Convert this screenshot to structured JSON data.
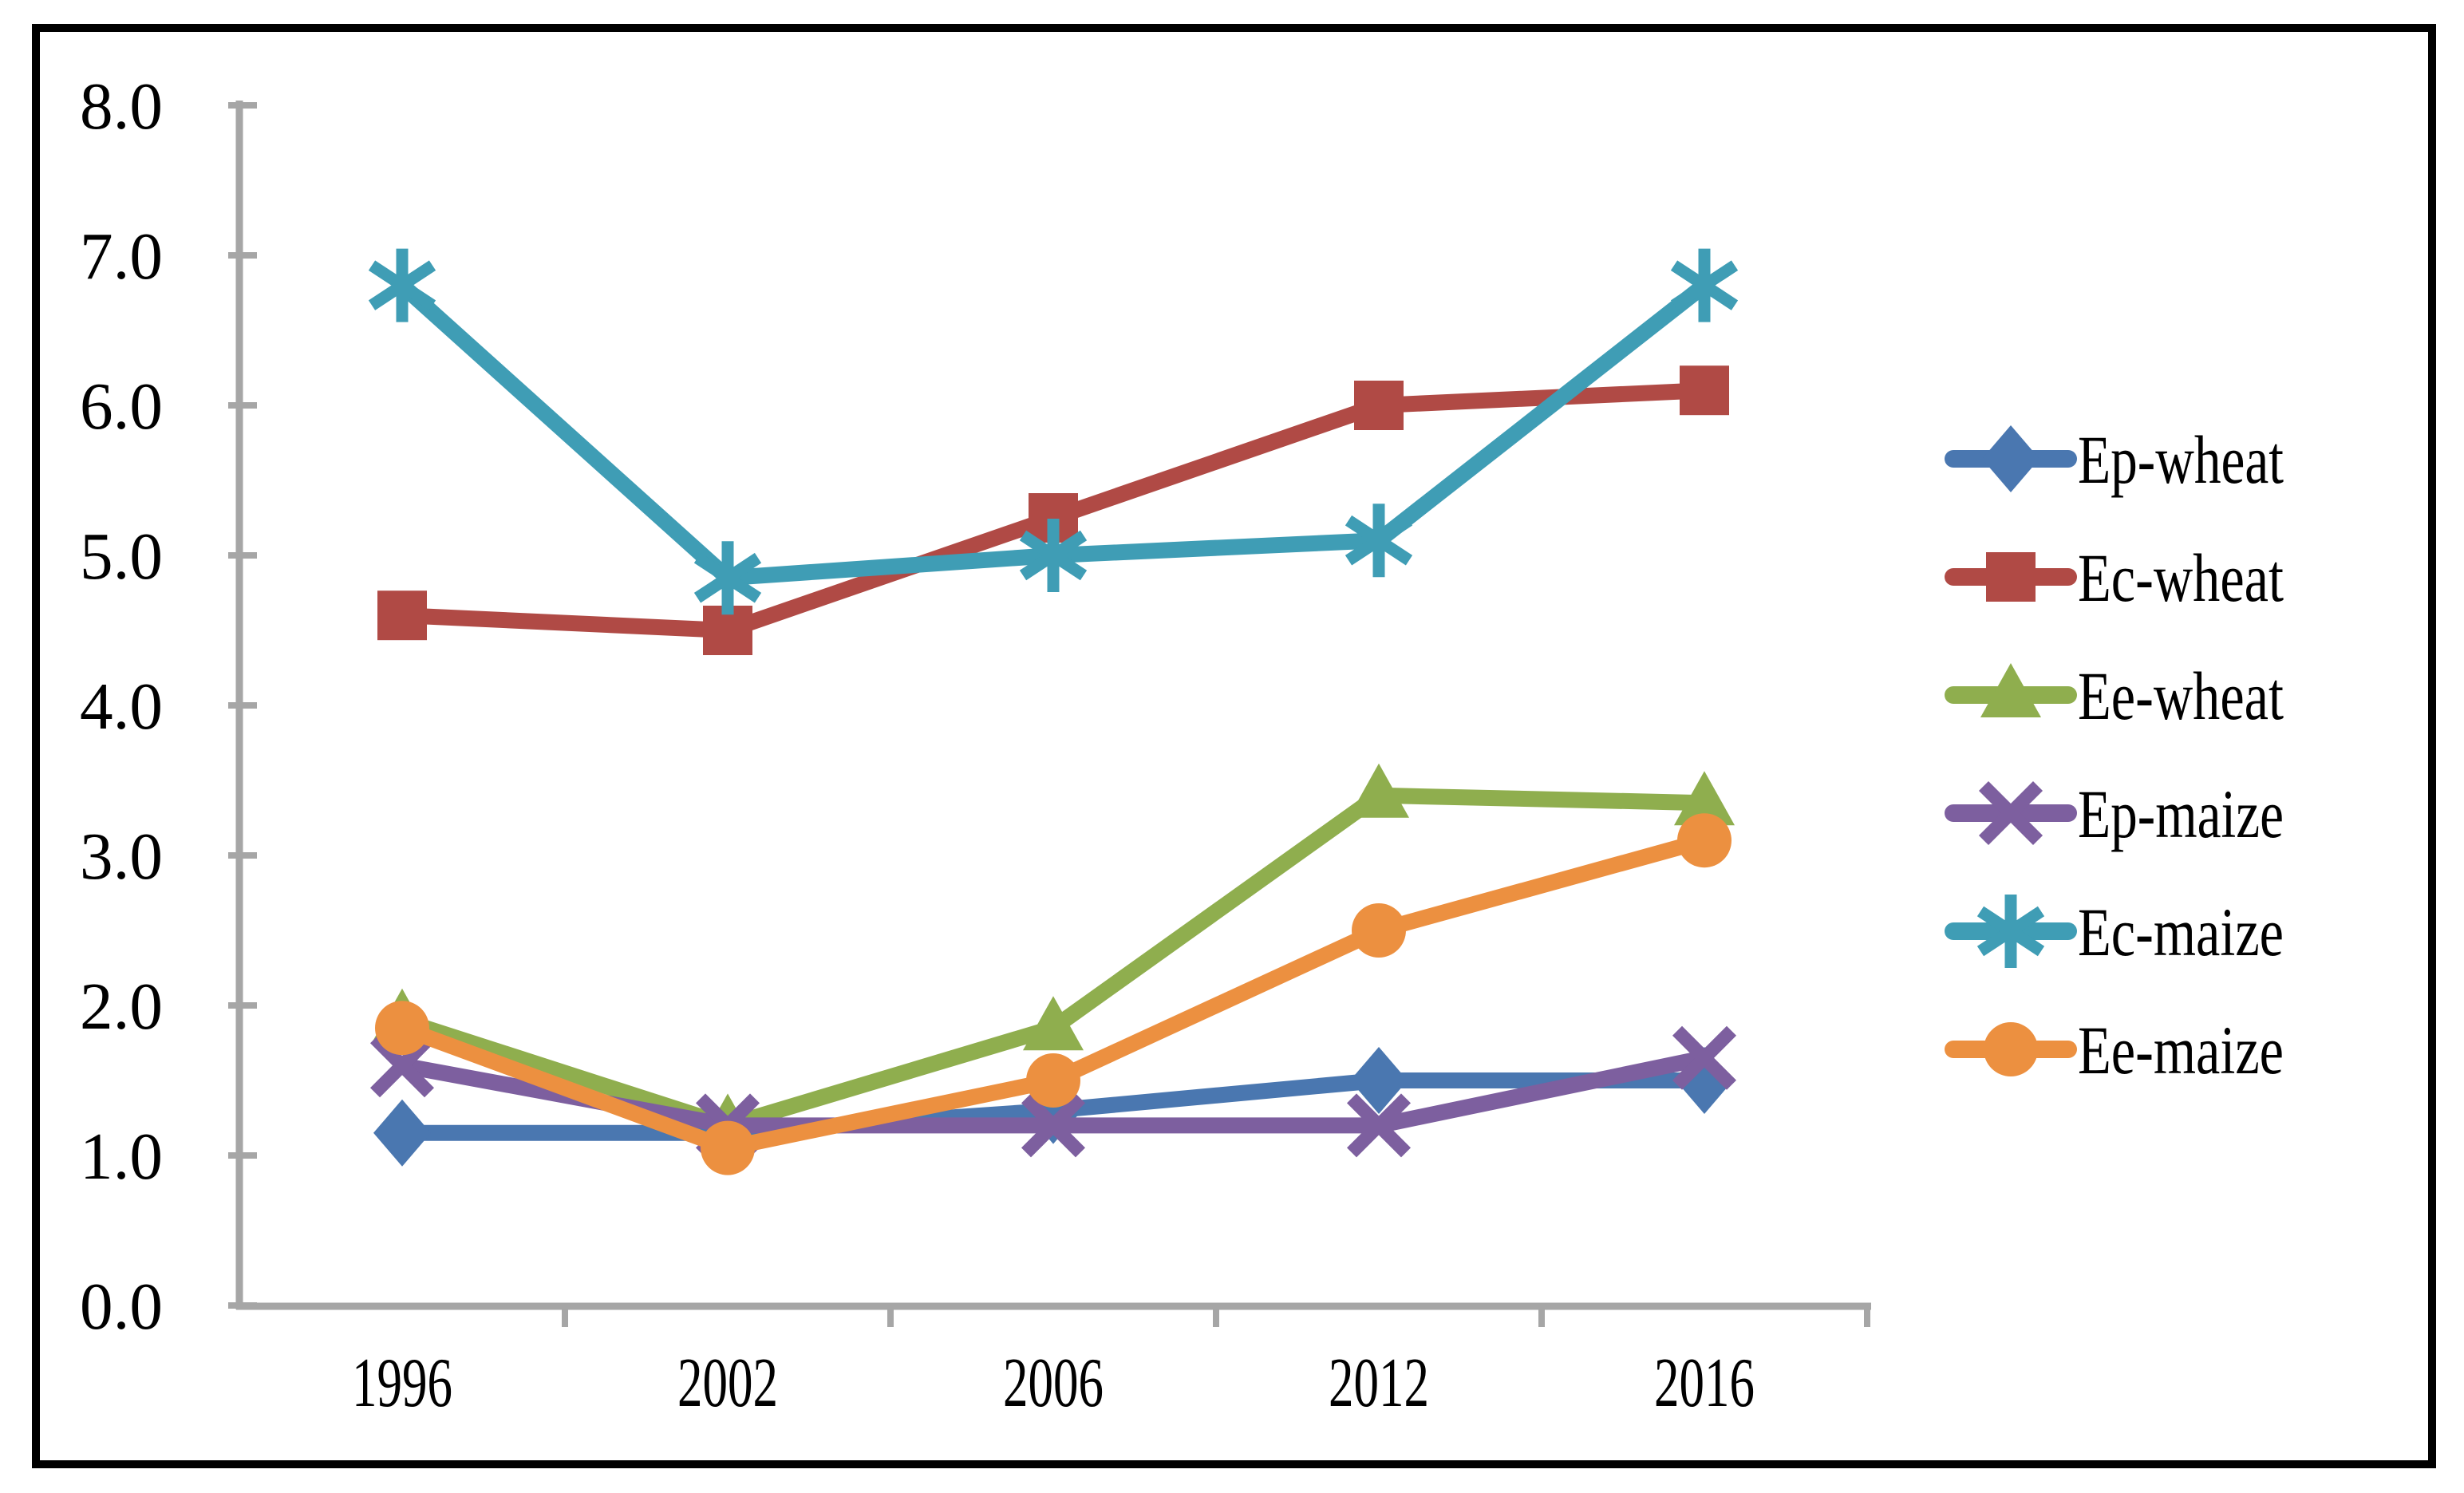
{
  "chart_data": {
    "type": "line",
    "title": "",
    "xlabel": "",
    "ylabel": "",
    "categories": [
      "1996",
      "2002",
      "2006",
      "2012",
      "2016"
    ],
    "series": [
      {
        "name": "Ep-wheat",
        "marker": "diamond",
        "color": "#4A77B0",
        "values": [
          1.15,
          1.15,
          1.3,
          1.5,
          1.5
        ]
      },
      {
        "name": "Ec-wheat",
        "marker": "square",
        "color": "#B04A45",
        "values": [
          4.6,
          4.5,
          5.25,
          6.0,
          6.1
        ]
      },
      {
        "name": "Ee-wheat",
        "marker": "triangle",
        "color": "#8FAE4E",
        "values": [
          1.9,
          1.2,
          1.85,
          3.4,
          3.35
        ]
      },
      {
        "name": "Ep-maize",
        "marker": "x",
        "color": "#7D5F9F",
        "values": [
          1.6,
          1.2,
          1.2,
          1.2,
          1.65
        ]
      },
      {
        "name": "Ec-maize",
        "marker": "asterisk",
        "color": "#3F9DB5",
        "values": [
          6.8,
          4.85,
          5.0,
          5.1,
          6.8
        ]
      },
      {
        "name": "Ee-maize",
        "marker": "circle",
        "color": "#EC9040",
        "values": [
          1.85,
          1.05,
          1.5,
          2.5,
          3.1
        ]
      }
    ],
    "y_axis": {
      "min": 0,
      "max": 8,
      "step": 1,
      "tick_labels": [
        "0.0",
        "1.0",
        "2.0",
        "3.0",
        "4.0",
        "5.0",
        "6.0",
        "7.0",
        "8.0"
      ]
    },
    "x_axis": {
      "tick_labels": [
        "1996",
        "2002",
        "2006",
        "2012",
        "2016"
      ]
    },
    "ylim": [
      0,
      8
    ],
    "grid": false,
    "legend_position": "right",
    "axis_color": "#A6A6A6",
    "frame_color": "#000000",
    "background_color": "#FFFFFF"
  }
}
